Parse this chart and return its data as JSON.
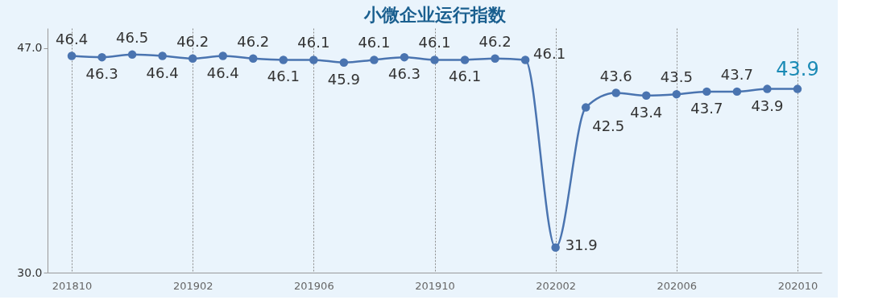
{
  "chart_data": {
    "type": "line",
    "title": "小微企业运行指数",
    "categories": [
      "201810",
      null,
      null,
      null,
      "201902",
      null,
      null,
      null,
      "201906",
      null,
      null,
      null,
      "201910",
      null,
      null,
      null,
      "202002",
      null,
      null,
      null,
      "202006",
      null,
      null,
      null,
      "202010"
    ],
    "series": [
      {
        "color": "#4a74b0",
        "values": [
          46.4,
          46.3,
          46.5,
          46.4,
          46.2,
          46.4,
          46.2,
          46.1,
          46.1,
          45.9,
          46.1,
          46.3,
          46.1,
          46.1,
          46.2,
          46.1,
          31.9,
          42.5,
          43.6,
          43.4,
          43.5,
          43.7,
          43.7,
          43.9,
          43.9
        ]
      }
    ],
    "ylim": [
      30,
      48.5
    ],
    "yticks": [
      {
        "value": 30,
        "label": "30.0"
      },
      {
        "value": 47,
        "label": "47.0"
      }
    ],
    "grid": "x",
    "marker": "circle",
    "line_style": "solid",
    "data_labels": true
  }
}
